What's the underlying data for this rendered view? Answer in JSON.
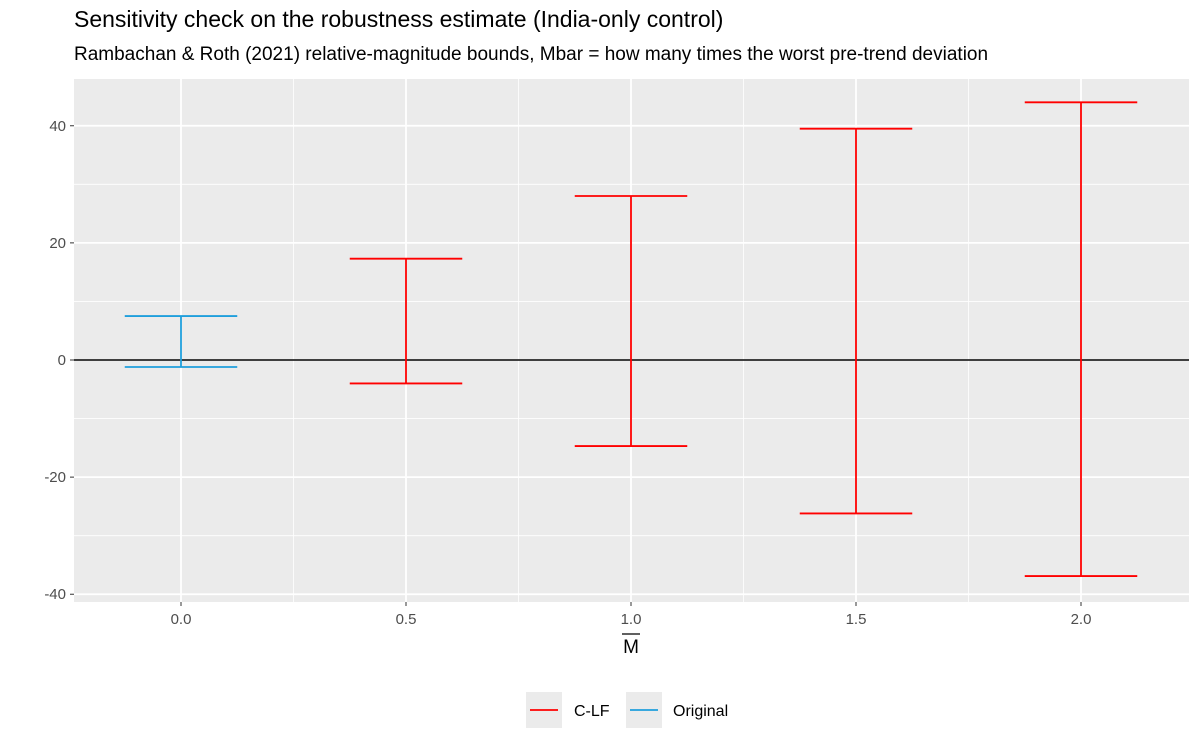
{
  "chart_data": {
    "type": "errorbar",
    "title": "Sensitivity check on the robustness estimate (India-only control)",
    "subtitle": "Rambachan & Roth (2021) relative-magnitude bounds, Mbar = how many times the worst pre-trend deviation",
    "xlabel": "M",
    "xlabel_overline": true,
    "ylabel": "",
    "x_ticks": [
      "0.0",
      "0.5",
      "1.0",
      "1.5",
      "2.0"
    ],
    "y_ticks": [
      "40",
      "20",
      "0",
      "-20",
      "-40"
    ],
    "xlim": [
      -0.25,
      2.25
    ],
    "ylim": [
      -41,
      48
    ],
    "hline": 0,
    "grid": true,
    "legend_position": "bottom",
    "colors": {
      "C-LF": "#ff0000",
      "Original": "#1f9fdc"
    },
    "series": [
      {
        "name": "C-LF",
        "points": [
          {
            "x": 0.5,
            "lb": -4.0,
            "ub": 17.3
          },
          {
            "x": 1.0,
            "lb": -14.7,
            "ub": 28.0
          },
          {
            "x": 1.5,
            "lb": -26.2,
            "ub": 39.5
          },
          {
            "x": 2.0,
            "lb": -36.9,
            "ub": 44.0
          }
        ]
      },
      {
        "name": "Original",
        "points": [
          {
            "x": 0.0,
            "lb": -1.2,
            "ub": 7.5
          }
        ]
      }
    ],
    "legend": [
      "C-LF",
      "Original"
    ]
  }
}
